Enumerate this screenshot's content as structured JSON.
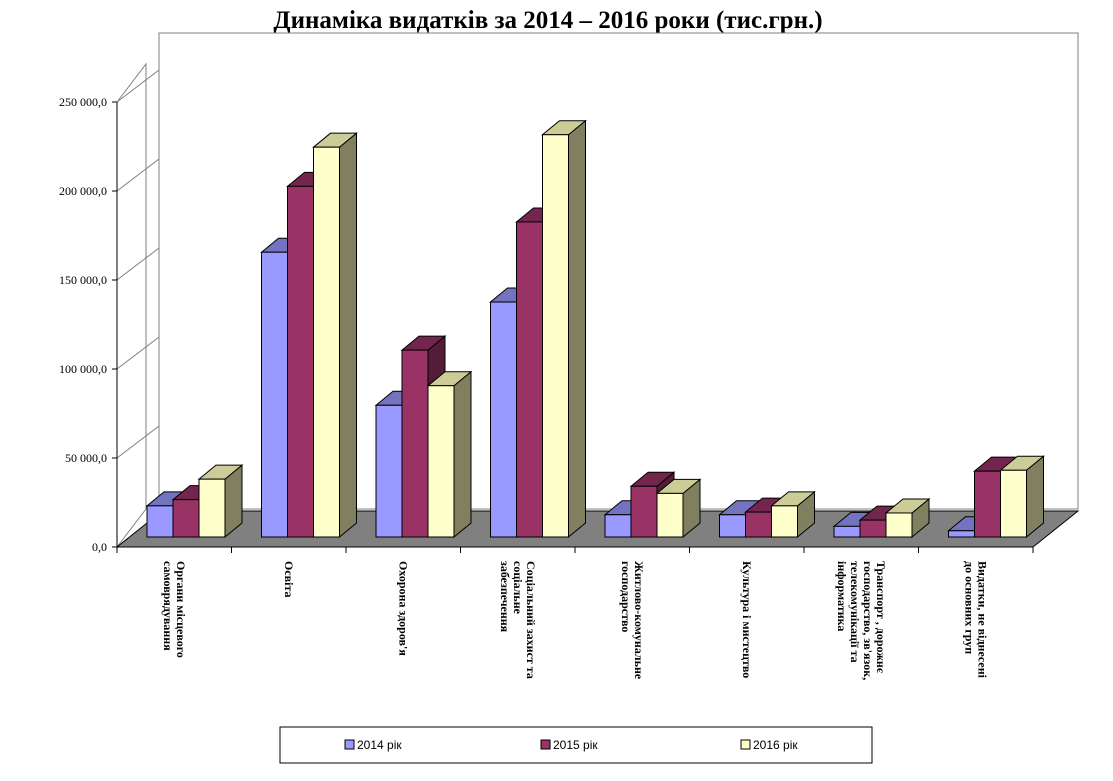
{
  "chart_data": {
    "type": "bar",
    "title": "Динаміка видатків за 2014 – 2016 роки  (тис.грн.)",
    "categories": [
      [
        "Органи місцевого",
        "самоврядування"
      ],
      [
        "Освіта"
      ],
      [
        "Охорона здоров'я"
      ],
      [
        "Соціальний захист та",
        "соціальне",
        "забезпечення"
      ],
      [
        "Житлово-комунальне",
        "господарство"
      ],
      [
        "Культура і мистецтво"
      ],
      [
        "Транспорт , дорожнє",
        "господарство, зв'язок,",
        "телекомунікації та",
        "інформатика"
      ],
      [
        "Видатки, не віднесені",
        "до основних груп"
      ]
    ],
    "series": [
      {
        "name": "2014 рік",
        "values": [
          17500,
          160000,
          74000,
          132000,
          12500,
          12500,
          6000,
          3500
        ]
      },
      {
        "name": "2015 рік",
        "values": [
          21000,
          197000,
          105000,
          177000,
          28500,
          14000,
          9500,
          37000
        ]
      },
      {
        "name": "2016 рік",
        "values": [
          32500,
          219000,
          85000,
          226000,
          24500,
          17500,
          13500,
          37500
        ]
      }
    ],
    "ylim": [
      0,
      250000
    ],
    "yticks": [
      "0,0",
      "50 000,0",
      "100 000,0",
      "150 000,0",
      "200 000,0",
      "250 000,0"
    ],
    "xlabel": "",
    "ylabel": "",
    "legend_position": "bottom",
    "colors": {
      "2014 рік": "#9999ff",
      "2015 рік": "#993366",
      "2016 рік": "#ffffcc"
    }
  }
}
